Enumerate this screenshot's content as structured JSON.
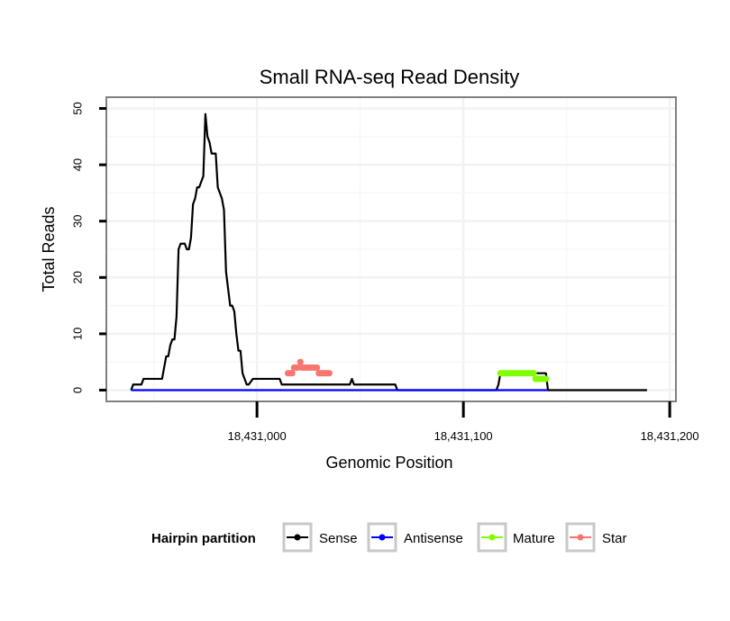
{
  "chart_data": {
    "type": "line",
    "title": "Small RNA-seq Read Density",
    "xlabel": "Genomic Position",
    "ylabel": "Total Reads",
    "xlim": [
      18430927,
      18431203
    ],
    "ylim": [
      -2,
      52
    ],
    "x_ticks": [
      18431000,
      18431100,
      18431200
    ],
    "x_tick_labels": [
      "18,431,000",
      "18,431,100",
      "18,431,200"
    ],
    "y_ticks": [
      0,
      10,
      20,
      30,
      40,
      50
    ],
    "y_tick_labels": [
      "0",
      "10",
      "20",
      "30",
      "40",
      "50"
    ],
    "grid": true,
    "legend": {
      "title": "Hairpin partition",
      "position": "bottom",
      "entries": [
        "Sense",
        "Antisense",
        "Mature",
        "Star"
      ]
    },
    "series": [
      {
        "name": "Sense",
        "color": "#000000",
        "x": [
          18430939,
          18430940,
          18430944,
          18430945,
          18430954,
          18430955,
          18430956,
          18430957,
          18430958,
          18430959,
          18430960,
          18430961,
          18430962,
          18430963,
          18430964,
          18430965,
          18430966,
          18430967,
          18430968,
          18430969,
          18430970,
          18430971,
          18430972,
          18430973,
          18430974,
          18430975,
          18430976,
          18430977,
          18430978,
          18430979,
          18430980,
          18430981,
          18430982,
          18430983,
          18430984,
          18430985,
          18430986,
          18430987,
          18430988,
          18430989,
          18430990,
          18430991,
          18430992,
          18430993,
          18430994,
          18430995,
          18430996,
          18430998,
          18431011,
          18431012,
          18431045,
          18431046,
          18431047,
          18431048,
          18431067,
          18431068,
          18431116,
          18431117,
          18431118,
          18431140,
          18431141,
          18431189
        ],
        "values": [
          0,
          1,
          1,
          2,
          2,
          4,
          6,
          6,
          8,
          9,
          9,
          13,
          25,
          26,
          26,
          26,
          25,
          25,
          27,
          33,
          34,
          36,
          36,
          37,
          38,
          49,
          45,
          44,
          42,
          42,
          42,
          36,
          35,
          34,
          32,
          21,
          18,
          15,
          15,
          14,
          10,
          7,
          7,
          3,
          2,
          1,
          1,
          2,
          2,
          1,
          1,
          2,
          1,
          1,
          1,
          0,
          0,
          1,
          3,
          3,
          0,
          0
        ]
      },
      {
        "name": "Antisense",
        "color": "#0000ff",
        "x": [
          18430939,
          18431141
        ],
        "values": [
          0,
          0
        ]
      },
      {
        "name": "Mature",
        "color": "#80ff00",
        "x": [
          18431118,
          18431119,
          18431120,
          18431121,
          18431122,
          18431123,
          18431124,
          18431125,
          18431126,
          18431127,
          18431128,
          18431129,
          18431130,
          18431131,
          18431132,
          18431133,
          18431134,
          18431135,
          18431136,
          18431137,
          18431138,
          18431139,
          18431140
        ],
        "values": [
          3,
          3,
          3,
          3,
          3,
          3,
          3,
          3,
          3,
          3,
          3,
          3,
          3,
          3,
          3,
          3,
          3,
          2,
          2,
          2,
          2,
          2,
          2
        ]
      },
      {
        "name": "Star",
        "color": "#f8766d",
        "x": [
          18431015,
          18431016,
          18431017,
          18431018,
          18431019,
          18431020,
          18431021,
          18431022,
          18431023,
          18431024,
          18431025,
          18431026,
          18431027,
          18431028,
          18431029,
          18431030,
          18431031,
          18431032,
          18431033,
          18431034,
          18431035
        ],
        "values": [
          3,
          3,
          3,
          4,
          4,
          4,
          5,
          4,
          4,
          4,
          4,
          4,
          4,
          4,
          4,
          3,
          3,
          3,
          3,
          3,
          3
        ]
      }
    ]
  }
}
